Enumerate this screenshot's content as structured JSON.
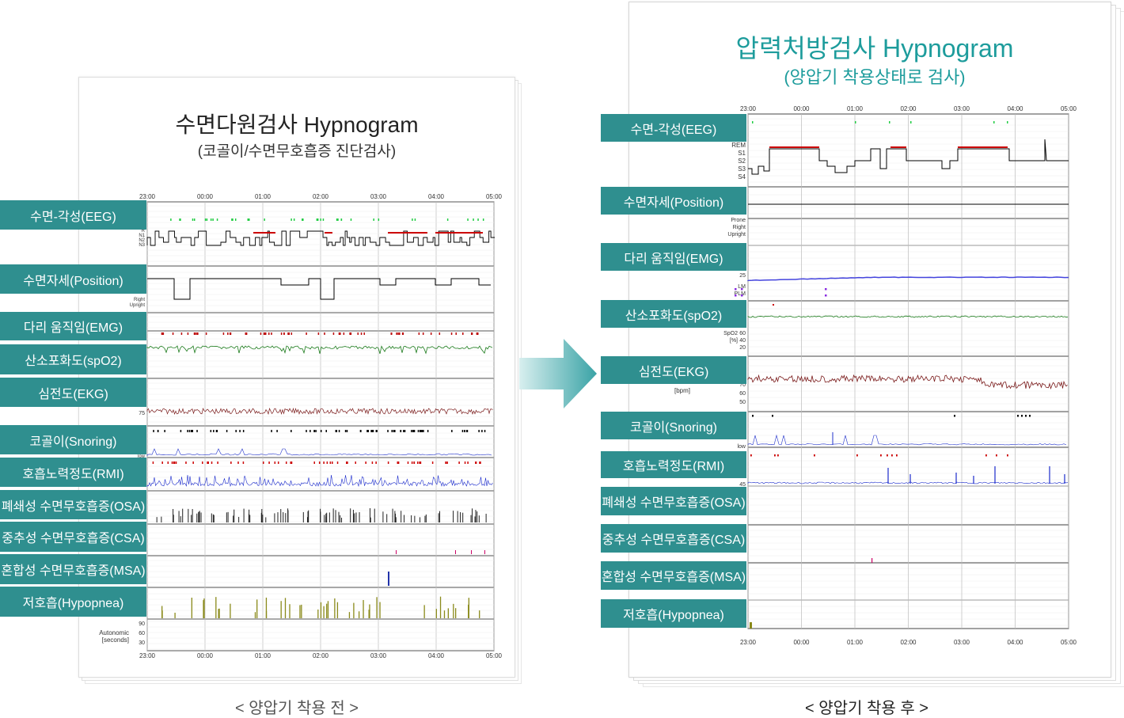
{
  "left": {
    "title": "수면다원검사 Hypnogram",
    "subtitle": "(코골이/수면무호흡증 진단검사)",
    "caption": "< 양압기 착용 전 >",
    "time_ticks": [
      "23:00",
      "00:00",
      "01:00",
      "02:00",
      "03:00",
      "04:00",
      "05:00"
    ],
    "channels": [
      "수면-각성(EEG)",
      "수면자세(Position)",
      "다리 움직임(EMG)",
      "산소포화도(spO2)",
      "심전도(EKG)",
      "코골이(Snoring)",
      "호흡노력정도(RMI)",
      "폐쇄성 수면무호흡증(OSA)",
      "중추성 수면무호흡증(CSA)",
      "혼합성 수면무호흡증(MSA)",
      "저호흡(Hypopnea)"
    ],
    "axis_labels": {
      "eeg": [
        "R",
        "N1",
        "N2",
        "N3"
      ],
      "position": [
        "Right",
        "Upright"
      ],
      "ekg": "[bpm]",
      "ekg_val": "75",
      "snoring": "low",
      "autonomic": "Autonomic\n[seconds]",
      "autonomic_ticks": [
        "90",
        "60",
        "30"
      ]
    }
  },
  "right": {
    "title": "압력처방검사 Hypnogram",
    "subtitle": "(양압기 착용상태로 검사)",
    "caption": "< 양압기 착용 후 >",
    "time_ticks": [
      "23:00",
      "00:00",
      "01:00",
      "02:00",
      "03:00",
      "04:00",
      "05:00"
    ],
    "channels": [
      "수면-각성(EEG)",
      "수면자세(Position)",
      "다리 움직임(EMG)",
      "산소포화도(spO2)",
      "심전도(EKG)",
      "코골이(Snoring)",
      "호흡노력정도(RMI)",
      "폐쇄성 수면무호흡증(OSA)",
      "중추성 수면무호흡증(CSA)",
      "혼합성 수면무호흡증(MSA)",
      "저호흡(Hypopnea)"
    ],
    "axis_labels": {
      "eeg": [
        "REM",
        "S1",
        "S2",
        "S3",
        "S4"
      ],
      "position": [
        "Prone",
        "Right",
        "Upright"
      ],
      "emg": [
        "LM",
        "PLM"
      ],
      "emg_val": "25",
      "spo2": [
        "SpO2",
        "[%]"
      ],
      "spo2_ticks": [
        "60",
        "40",
        "20"
      ],
      "ekg": "[bpm]",
      "ekg_ticks": [
        "70",
        "60",
        "50"
      ],
      "snoring": "low",
      "rmi": "45"
    }
  },
  "colors": {
    "teal_label": "#2f8f8f",
    "title_teal": "#1d9c9c",
    "eeg_line": "#000000",
    "rem": "#cc0000",
    "spo2": "#1a7a1a",
    "ekg": "#7a1a1a",
    "rmi": "#1a2acc",
    "hypopnea": "#8a8a1a",
    "markers_green": "#22cc44"
  },
  "chart_data": [
    {
      "type": "line",
      "title": "수면다원검사 Hypnogram",
      "x": [
        "23:00",
        "00:00",
        "01:00",
        "02:00",
        "03:00",
        "04:00",
        "05:00"
      ]
    },
    {
      "type": "line",
      "title": "압력처방검사 Hypnogram",
      "x": [
        "23:00",
        "00:00",
        "01:00",
        "02:00",
        "03:00",
        "04:00",
        "05:00"
      ]
    }
  ]
}
